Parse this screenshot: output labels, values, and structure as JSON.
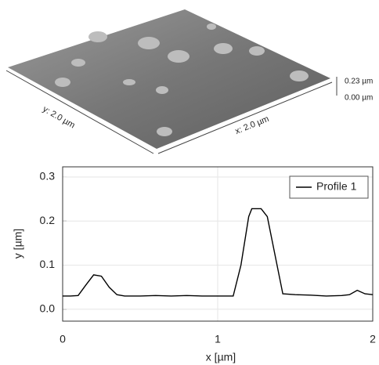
{
  "surface": {
    "z_max_label": "0.23 µm",
    "z_min_label": "0.00 µm",
    "y_label": "y: 2.0 µm",
    "x_label": "x: 2.0 µm"
  },
  "chart_data": {
    "type": "line",
    "xlabel": "x [µm]",
    "ylabel": "y [µm]",
    "x": [
      0,
      0.05,
      0.1,
      0.15,
      0.2,
      0.25,
      0.3,
      0.35,
      0.4,
      0.5,
      0.6,
      0.7,
      0.8,
      0.9,
      1.0,
      1.1,
      1.15,
      1.2,
      1.22,
      1.28,
      1.32,
      1.4,
      1.42,
      1.5,
      1.6,
      1.7,
      1.8,
      1.85,
      1.9,
      1.95,
      2.0
    ],
    "series": [
      {
        "name": "Profile 1",
        "color": "#000000",
        "values": [
          0.03,
          0.03,
          0.031,
          0.055,
          0.078,
          0.075,
          0.05,
          0.033,
          0.03,
          0.03,
          0.031,
          0.03,
          0.031,
          0.03,
          0.03,
          0.03,
          0.1,
          0.21,
          0.228,
          0.228,
          0.21,
          0.07,
          0.035,
          0.033,
          0.032,
          0.03,
          0.031,
          0.033,
          0.043,
          0.035,
          0.033
        ]
      }
    ],
    "xlim": [
      0,
      2
    ],
    "xticks": [
      0,
      1,
      2
    ],
    "ylim": [
      -0.027,
      0.323
    ],
    "yticks": [
      {
        "value": 0,
        "label": "0.0"
      },
      0.1,
      0.2,
      0.3
    ],
    "grid": true,
    "legend": "upper right"
  }
}
